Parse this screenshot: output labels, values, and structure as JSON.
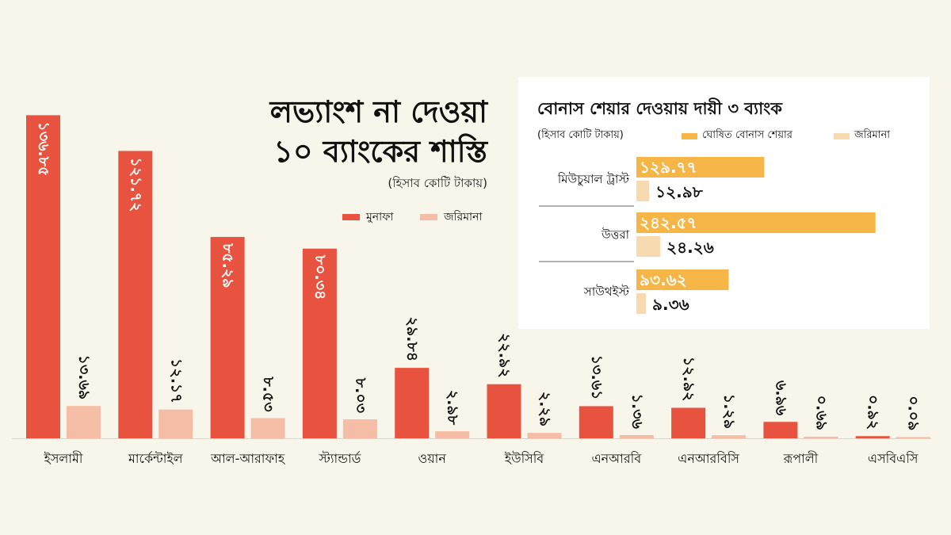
{
  "headline": {
    "line1": "লভ্যাংশ না দেওয়া",
    "line2": "১০ ব্যাংকের শাস্তি",
    "unit": "(হিসাব কোটি টাকায়)"
  },
  "legend": {
    "profit": "মুনাফা",
    "fine": "জরিমানা"
  },
  "inset": {
    "title": "বোনাস শেয়ার দেওয়ায় দায়ী ৩ ব্যাংক",
    "unit": "(হিসাব কোটি টাকায়)",
    "legend_bonus": "ঘোষিত বোনাস শেয়ার",
    "legend_fine": "জরিমানা"
  },
  "colors": {
    "profit": "#e8533f",
    "fine": "#f5bca6",
    "bonus": "#f6b647",
    "inset_fine": "#f8dab0",
    "background": "#f8f5ea"
  },
  "chart_data": [
    {
      "type": "bar",
      "title": "লভ্যাংশ না দেওয়া ১০ ব্যাংকের শাস্তি",
      "subtitle": "(হিসাব কোটি টাকায়)",
      "categories": [
        "ইসলামী",
        "মার্কেন্টাইল",
        "আল-আরাফাহ",
        "স্ট্যান্ডার্ড",
        "ওয়ান",
        "ইউসিবি",
        "এনআরবি",
        "এনআরবিসি",
        "রূপালী",
        "এসবিএসি"
      ],
      "series": [
        {
          "name": "মুনাফা",
          "values": [
            136.85,
            121.72,
            85.29,
            80.34,
            29.84,
            22.92,
            13.61,
            12.92,
            6.96,
            0.92
          ],
          "labels": [
            "১৩৬.৮৫",
            "১২১.৭২",
            "৮৫.২৯",
            "৮০.৩৪",
            "২৯.৮৪",
            "২২.৯২",
            "১৩.৬১",
            "১২.৯২",
            "৬.৯৬",
            "০.৯২"
          ]
        },
        {
          "name": "জরিমানা",
          "values": [
            13.69,
            12.17,
            8.53,
            8.03,
            2.98,
            2.29,
            1.36,
            1.29,
            0.69,
            0.09
          ],
          "labels": [
            "১৩.৬৯",
            "১২.১৭",
            "৮.৫৩",
            "৮.০৩",
            "২.৯৮",
            "২.২৯",
            "১.৩৬",
            "১.২৯",
            "০.৬৯",
            "০.০৯"
          ]
        }
      ],
      "ylim": [
        0,
        140
      ],
      "grid": false,
      "legend_position": "below-title"
    },
    {
      "type": "bar",
      "orientation": "horizontal",
      "title": "বোনাস শেয়ার দেওয়ায় দায়ী ৩ ব্যাংক",
      "subtitle": "(হিসাব কোটি টাকায়)",
      "categories": [
        "মিউচুয়াল ট্রাস্ট",
        "উত্তরা",
        "সাউথইস্ট"
      ],
      "series": [
        {
          "name": "ঘোষিত বোনাস শেয়ার",
          "values": [
            129.77,
            242.57,
            93.62
          ],
          "labels": [
            "১২৯.৭৭",
            "২৪২.৫৭",
            "৯৩.৬২"
          ]
        },
        {
          "name": "জরিমানা",
          "values": [
            12.98,
            24.26,
            9.36
          ],
          "labels": [
            "১২.৯৮",
            "২৪.২৬",
            "৯.৩৬"
          ]
        }
      ],
      "xlim": [
        0,
        250
      ],
      "grid": false,
      "legend_position": "top"
    }
  ]
}
